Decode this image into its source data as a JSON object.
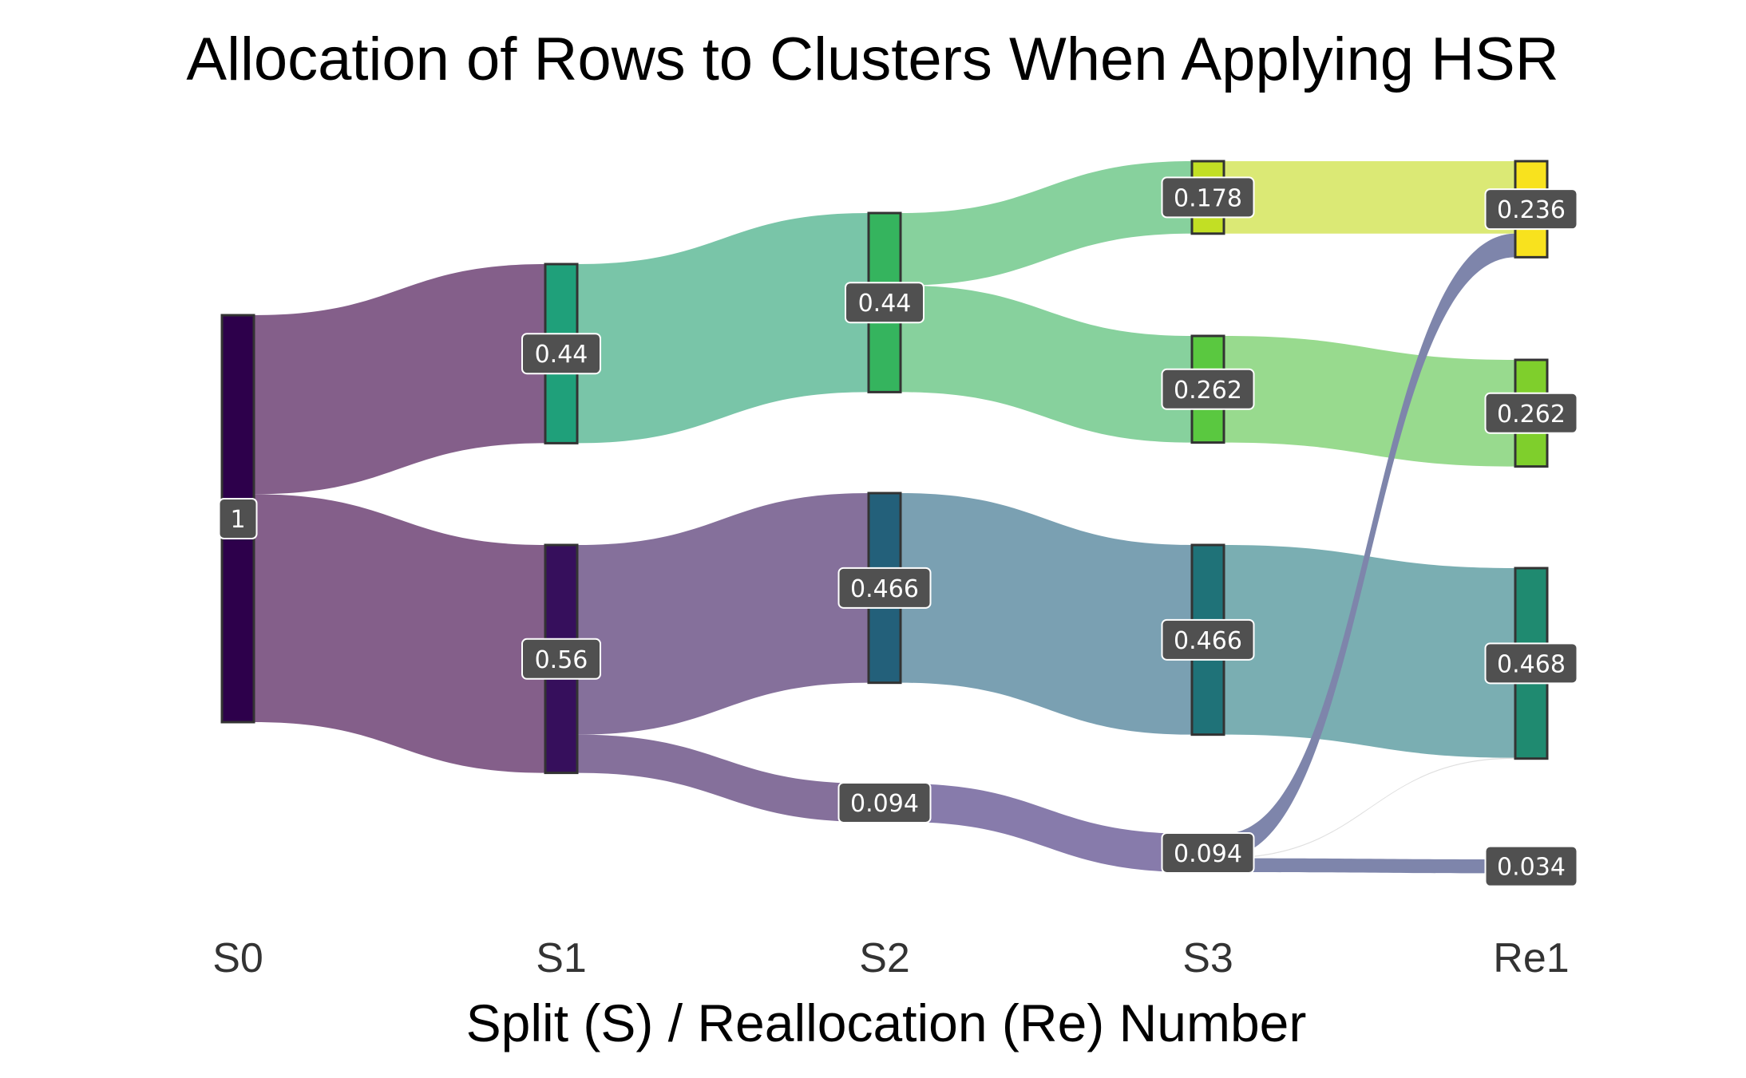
{
  "chart_data": {
    "type": "sankey",
    "title": "Allocation of Rows to Clusters When Applying HSR",
    "xlabel": "Split (S) / Reallocation (Re) Number",
    "stages": [
      "S0",
      "S1",
      "S2",
      "S3",
      "Re1"
    ],
    "nodes": [
      {
        "id": "s0",
        "stage": 0,
        "value": 1,
        "label": "1",
        "color": "#2d004b"
      },
      {
        "id": "s1a",
        "stage": 1,
        "value": 0.44,
        "label": "0.44",
        "color": "#1fa07a"
      },
      {
        "id": "s1b",
        "stage": 1,
        "value": 0.56,
        "label": "0.56",
        "color": "#360f5c"
      },
      {
        "id": "s2a",
        "stage": 2,
        "value": 0.44,
        "label": "0.44",
        "color": "#35b45e"
      },
      {
        "id": "s2b",
        "stage": 2,
        "value": 0.466,
        "label": "0.466",
        "color": "#23607a"
      },
      {
        "id": "s2c",
        "stage": 2,
        "value": 0.094,
        "label": "0.094",
        "color": "#4a2a78"
      },
      {
        "id": "s3a",
        "stage": 3,
        "value": 0.178,
        "label": "0.178",
        "color": "#c2df24"
      },
      {
        "id": "s3b",
        "stage": 3,
        "value": 0.262,
        "label": "0.262",
        "color": "#5ac840"
      },
      {
        "id": "s3c",
        "stage": 3,
        "value": 0.466,
        "label": "0.466",
        "color": "#1f7278"
      },
      {
        "id": "s3d",
        "stage": 3,
        "value": 0.094,
        "label": "0.094",
        "color": "#4f3b8a"
      },
      {
        "id": "re1a",
        "stage": 4,
        "value": 0.236,
        "label": "0.236",
        "color": "#f8e21e"
      },
      {
        "id": "re1b",
        "stage": 4,
        "value": 0.262,
        "label": "0.262",
        "color": "#7fcf2c"
      },
      {
        "id": "re1c",
        "stage": 4,
        "value": 0.468,
        "label": "0.468",
        "color": "#1f8a70"
      },
      {
        "id": "re1d",
        "stage": 4,
        "value": 0.034,
        "label": "0.034",
        "color": "#3e4d8a"
      }
    ],
    "links": [
      {
        "source": "s0",
        "target": "s1a",
        "value": 0.44,
        "color": "#845f8a"
      },
      {
        "source": "s0",
        "target": "s1b",
        "value": 0.56,
        "color": "#845f8a"
      },
      {
        "source": "s1a",
        "target": "s2a",
        "value": 0.44,
        "color": "#79c5a8"
      },
      {
        "source": "s1b",
        "target": "s2b",
        "value": 0.466,
        "color": "#85709b"
      },
      {
        "source": "s1b",
        "target": "s2c",
        "value": 0.094,
        "color": "#85709b"
      },
      {
        "source": "s2a",
        "target": "s3a",
        "value": 0.178,
        "color": "#87d19d"
      },
      {
        "source": "s2a",
        "target": "s3b",
        "value": 0.262,
        "color": "#87d19d"
      },
      {
        "source": "s2b",
        "target": "s3c",
        "value": 0.466,
        "color": "#7aa0b2"
      },
      {
        "source": "s2c",
        "target": "s3d",
        "value": 0.094,
        "color": "#877bab"
      },
      {
        "source": "s3a",
        "target": "re1a",
        "value": 0.178,
        "color": "#dbe975"
      },
      {
        "source": "s3b",
        "target": "re1b",
        "value": 0.262,
        "color": "#98da8e"
      },
      {
        "source": "s3c",
        "target": "re1c",
        "value": 0.466,
        "color": "#7aaeb2"
      },
      {
        "source": "s3d",
        "target": "re1a",
        "value": 0.058,
        "color": "#7e85ab"
      },
      {
        "source": "s3d",
        "target": "re1c",
        "value": 0.002,
        "color": "#c9c9c9"
      },
      {
        "source": "s3d",
        "target": "re1d",
        "value": 0.034,
        "color": "#7e85ab"
      }
    ]
  }
}
